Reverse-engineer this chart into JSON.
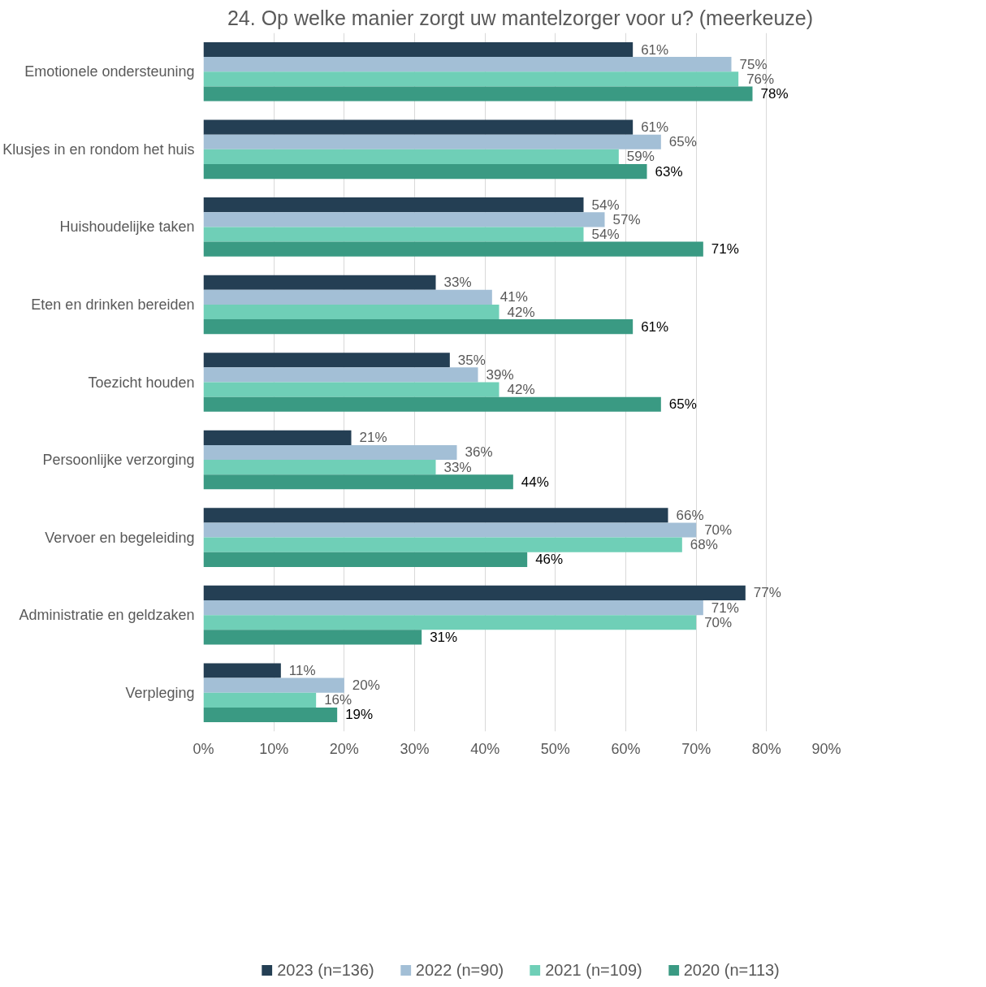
{
  "chart_data": {
    "type": "bar",
    "orientation": "horizontal",
    "title": "24. Op welke manier zorgt uw mantelzorger voor u? (meerkeuze)",
    "categories": [
      "Emotionele ondersteuning",
      "Klusjes in en rondom het huis",
      "Huishoudelijke taken",
      "Eten en drinken bereiden",
      "Toezicht houden",
      "Persoonlijke verzorging",
      "Vervoer en begeleiding",
      "Administratie en geldzaken",
      "Verpleging"
    ],
    "series": [
      {
        "name": "2023 (n=136)",
        "color": "#243f54",
        "values": [
          61,
          61,
          54,
          33,
          35,
          21,
          66,
          77,
          11
        ],
        "value_labels": [
          "61%",
          "61%",
          "54%",
          "33%",
          "35%",
          "21%",
          "66%",
          "77%",
          "11%"
        ]
      },
      {
        "name": "2022 (n=90)",
        "color": "#a3bfd6",
        "values": [
          75,
          65,
          57,
          41,
          39,
          36,
          70,
          71,
          20
        ],
        "value_labels": [
          "75%",
          "65%",
          "57%",
          "41%",
          "39%",
          "36%",
          "70%",
          "71%",
          "20%"
        ]
      },
      {
        "name": "2021 (n=109)",
        "color": "#6fcfb7",
        "values": [
          76,
          59,
          54,
          42,
          42,
          33,
          68,
          70,
          16
        ],
        "value_labels": [
          "76%",
          "59%",
          "54%",
          "42%",
          "42%",
          "33%",
          "68%",
          "70%",
          "16%"
        ]
      },
      {
        "name": "2020 (n=113)",
        "color": "#3a9a83",
        "values": [
          78,
          63,
          71,
          61,
          65,
          44,
          46,
          31,
          19
        ],
        "value_labels": [
          "78%",
          "63%",
          "71%",
          "61%",
          "65%",
          "44%",
          "46%",
          "31%",
          "19%"
        ]
      }
    ],
    "xlim": [
      0,
      90
    ],
    "xticks": [
      {
        "value": 0,
        "label": "0%"
      },
      {
        "value": 10,
        "label": "10%"
      },
      {
        "value": 20,
        "label": "20%"
      },
      {
        "value": 30,
        "label": "30%"
      },
      {
        "value": 40,
        "label": "40%"
      },
      {
        "value": 50,
        "label": "50%"
      },
      {
        "value": 60,
        "label": "60%"
      },
      {
        "value": 70,
        "label": "70%"
      },
      {
        "value": 80,
        "label": "80%"
      },
      {
        "value": 90,
        "label": "90%"
      }
    ],
    "grid": "x",
    "legend": "bottom"
  }
}
